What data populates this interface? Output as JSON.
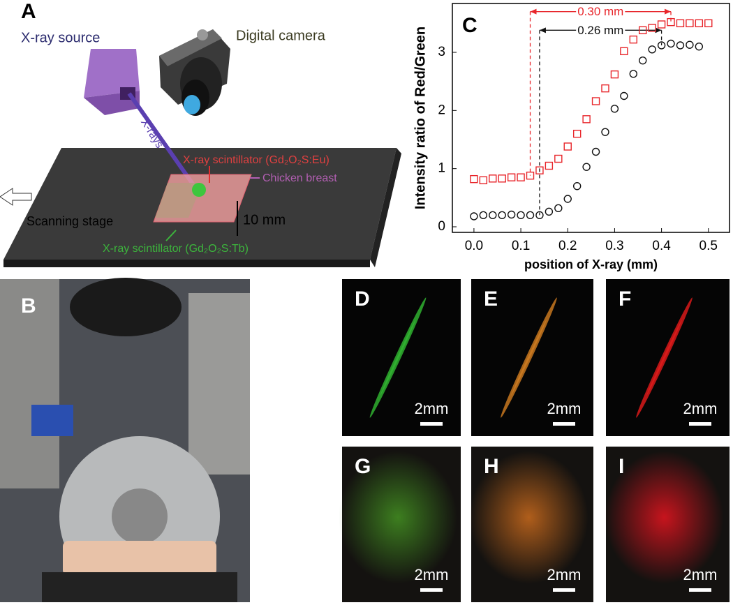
{
  "panel_a": {
    "letter": "A",
    "source": "X-ray source",
    "camera": "Digital camera",
    "beam": "X-rays",
    "scint_eu": "X-ray scintillator (Gd₂O₂S:Eu)",
    "tissue": "Chicken breast",
    "stage": "Scanning stage",
    "thickness": "10 mm",
    "scint_tb": "X-ray scintillator (Gd₂O₂S:Tb)"
  },
  "panel_b": {
    "letter": "B"
  },
  "micrographs": [
    {
      "letter": "D",
      "scale": "2mm",
      "color": "#30b030"
    },
    {
      "letter": "E",
      "scale": "2mm",
      "color": "#c87820"
    },
    {
      "letter": "F",
      "scale": "2mm",
      "color": "#d81a1a"
    },
    {
      "letter": "G",
      "scale": "2mm",
      "color": "#3f8420"
    },
    {
      "letter": "H",
      "scale": "2mm",
      "color": "#b8621c"
    },
    {
      "letter": "I",
      "scale": "2mm",
      "color": "#d0141e"
    }
  ],
  "chart_data": {
    "type": "scatter",
    "panel_label": "C",
    "x_label": "position of X-ray (mm)",
    "y_label": "Intensity ratio of Red/Green",
    "xlim": [
      -0.046,
      0.545
    ],
    "ylim": [
      -0.096,
      3.84
    ],
    "xticks": [
      {
        "value": 0,
        "label": "0.0"
      },
      0.1,
      0.2,
      0.3,
      0.4,
      0.5
    ],
    "yticks": [
      0,
      1,
      2,
      3
    ],
    "series": [
      {
        "marker": "square",
        "color": "#e8262b",
        "x": [
          0,
          0.02,
          0.04,
          0.06,
          0.08,
          0.1,
          0.12,
          0.14,
          0.16,
          0.18,
          0.2,
          0.22,
          0.24,
          0.26,
          0.28,
          0.3,
          0.32,
          0.34,
          0.36,
          0.38,
          0.4,
          0.42,
          0.44,
          0.46,
          0.48,
          0.5
        ],
        "values": [
          0.82,
          0.8,
          0.83,
          0.83,
          0.85,
          0.85,
          0.88,
          0.97,
          1.05,
          1.17,
          1.38,
          1.6,
          1.85,
          2.16,
          2.38,
          2.62,
          3.02,
          3.22,
          3.38,
          3.42,
          3.48,
          3.52,
          3.5,
          3.5,
          3.5,
          3.5
        ]
      },
      {
        "marker": "circle",
        "color": "#111111",
        "x": [
          0,
          0.02,
          0.04,
          0.06,
          0.08,
          0.1,
          0.12,
          0.14,
          0.16,
          0.18,
          0.2,
          0.22,
          0.24,
          0.26,
          0.28,
          0.3,
          0.32,
          0.34,
          0.36,
          0.38,
          0.4,
          0.42,
          0.44,
          0.46,
          0.48
        ],
        "values": [
          0.18,
          0.2,
          0.2,
          0.2,
          0.21,
          0.2,
          0.2,
          0.2,
          0.26,
          0.32,
          0.48,
          0.7,
          1.03,
          1.29,
          1.63,
          2.03,
          2.25,
          2.63,
          2.86,
          3.05,
          3.12,
          3.15,
          3.12,
          3.13,
          3.1
        ]
      }
    ],
    "annotations": [
      {
        "label": "0.30 mm",
        "color": "#e8262b",
        "x": [
          0.12,
          0.42
        ],
        "y": 3.7,
        "series": 0
      },
      {
        "label": "0.26 mm",
        "color": "#111111",
        "x": [
          0.14,
          0.4
        ],
        "y": 3.38,
        "series": 1
      }
    ]
  }
}
